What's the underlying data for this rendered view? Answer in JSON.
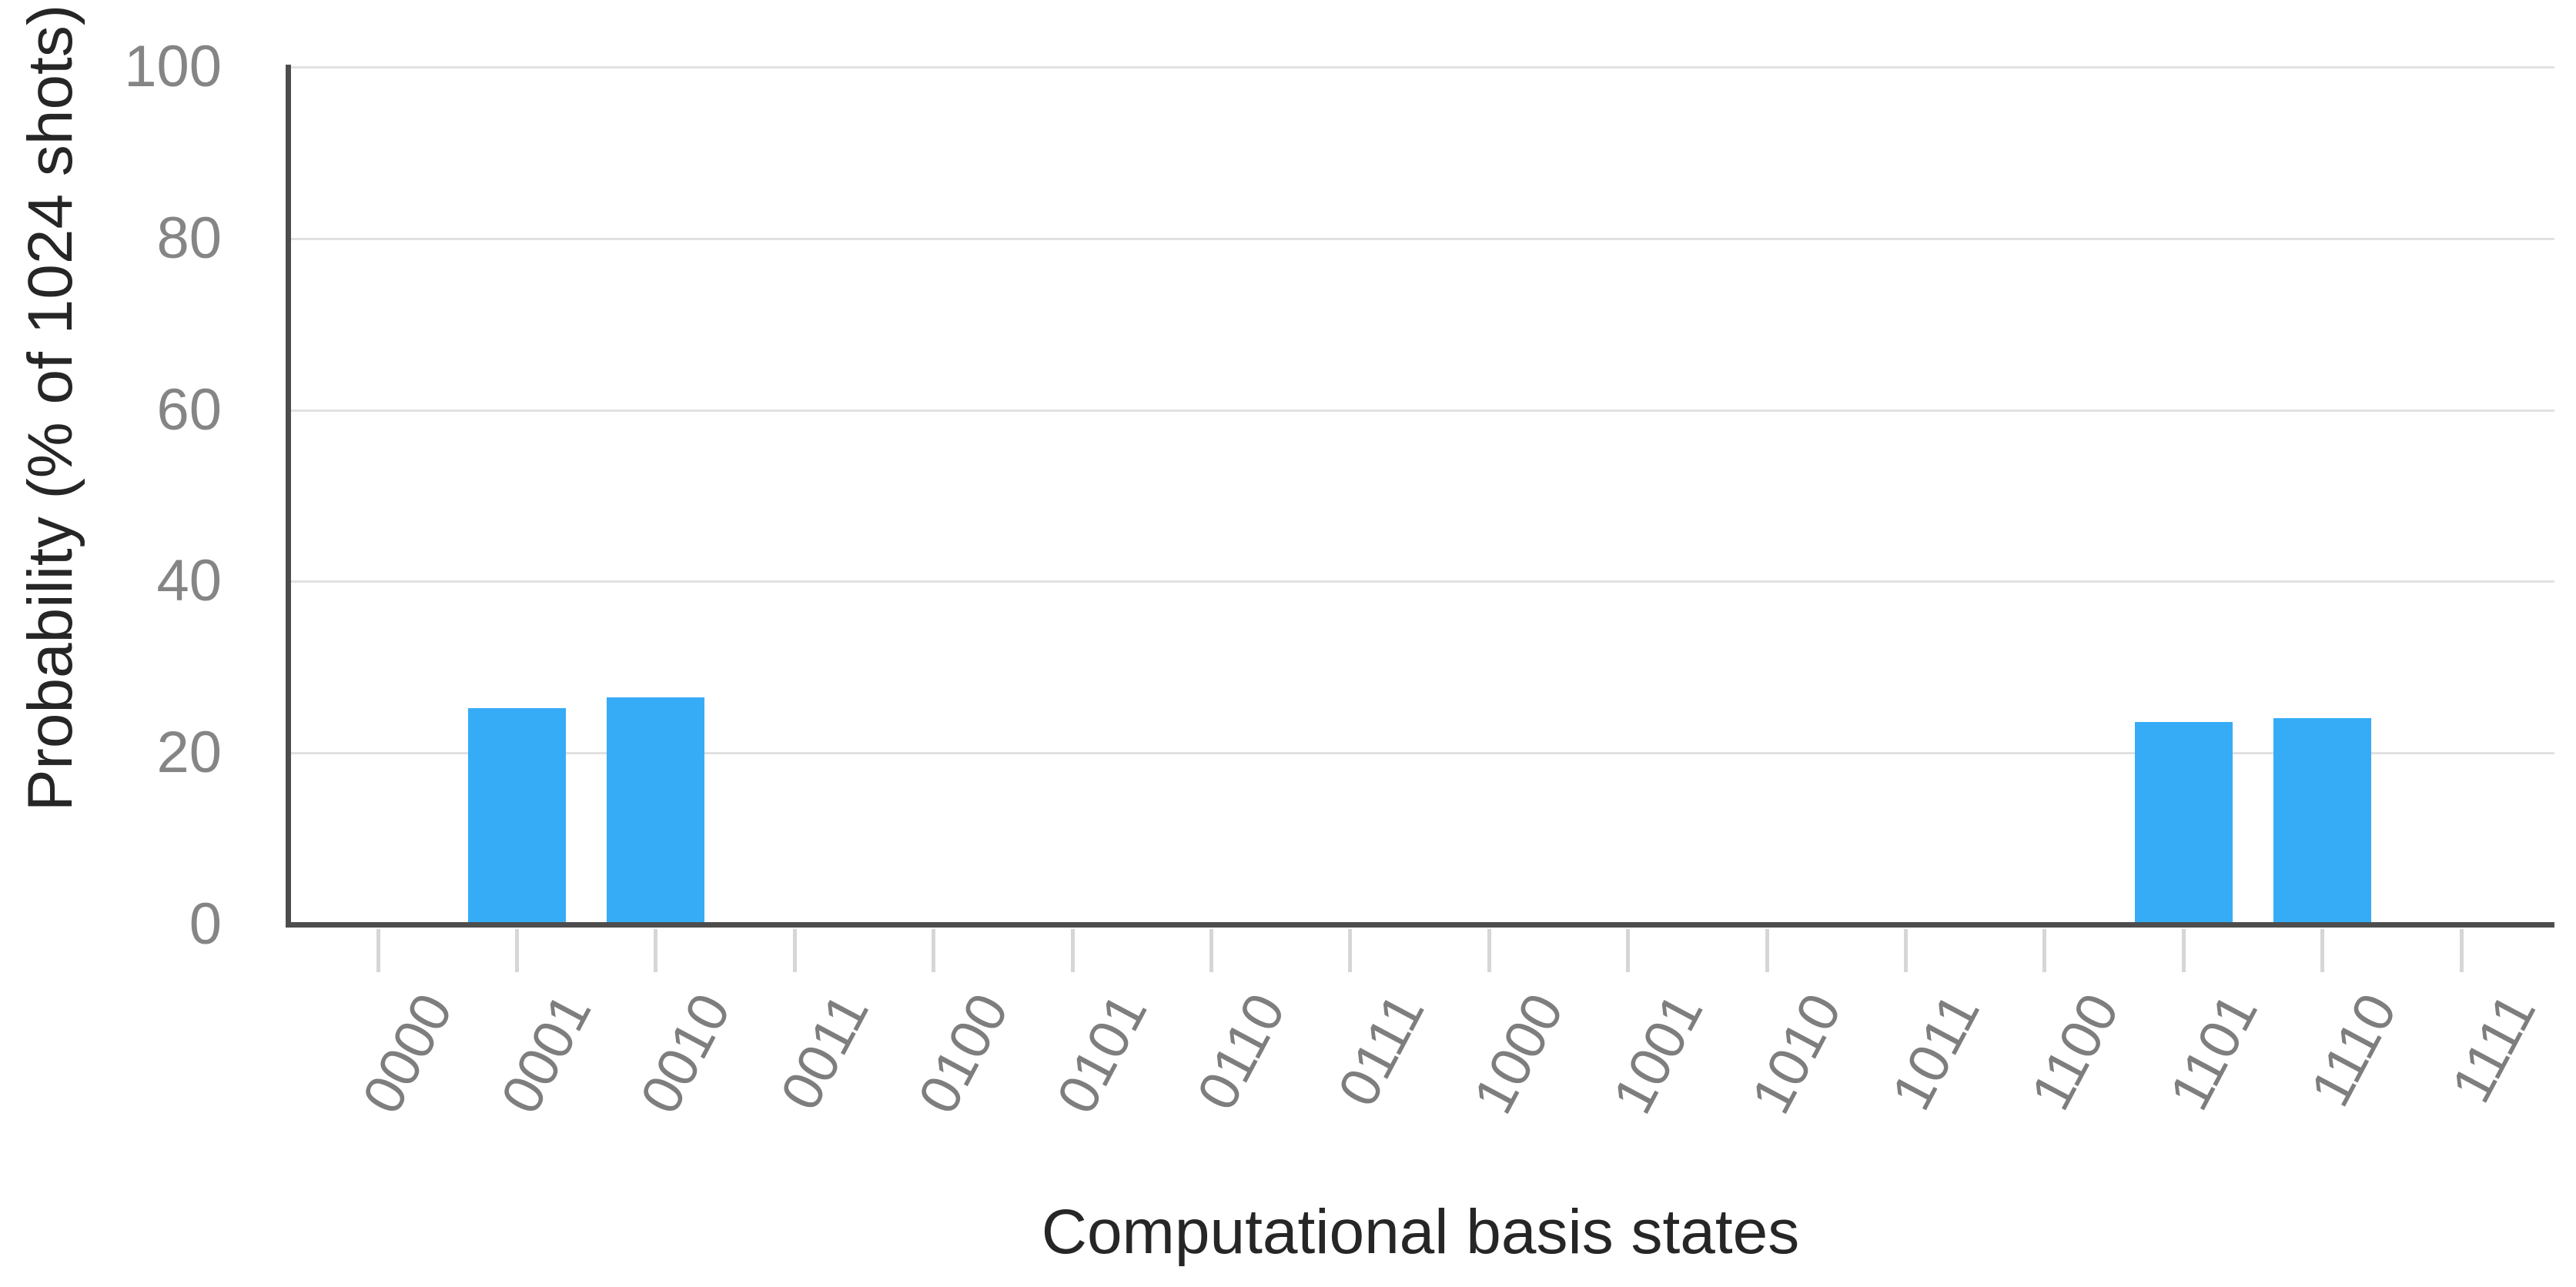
{
  "chart_data": {
    "type": "bar",
    "title": "",
    "xlabel": "Computational basis states",
    "ylabel": "Probability (% of 1024 shots)",
    "shots_text": "1024",
    "categories": [
      "0000",
      "0001",
      "0010",
      "0011",
      "0100",
      "0101",
      "0110",
      "0111",
      "1000",
      "1001",
      "1010",
      "1011",
      "1100",
      "1101",
      "1110",
      "1111"
    ],
    "values": [
      0,
      25.2,
      26.5,
      0,
      0,
      0,
      0,
      0,
      0,
      0,
      0,
      0,
      0,
      23.6,
      24.1,
      0
    ],
    "yticks": [
      0,
      20,
      40,
      60,
      80,
      100
    ],
    "ylim": [
      0,
      100
    ],
    "grid": "horizontal-only",
    "legend": "none",
    "bar_color": "#36acf7",
    "axis_color": "#4d4d4d",
    "gridline_color": "#e1e1e1",
    "tick_label_color": "#7e7e7e",
    "axis_title_color": "#262626"
  }
}
